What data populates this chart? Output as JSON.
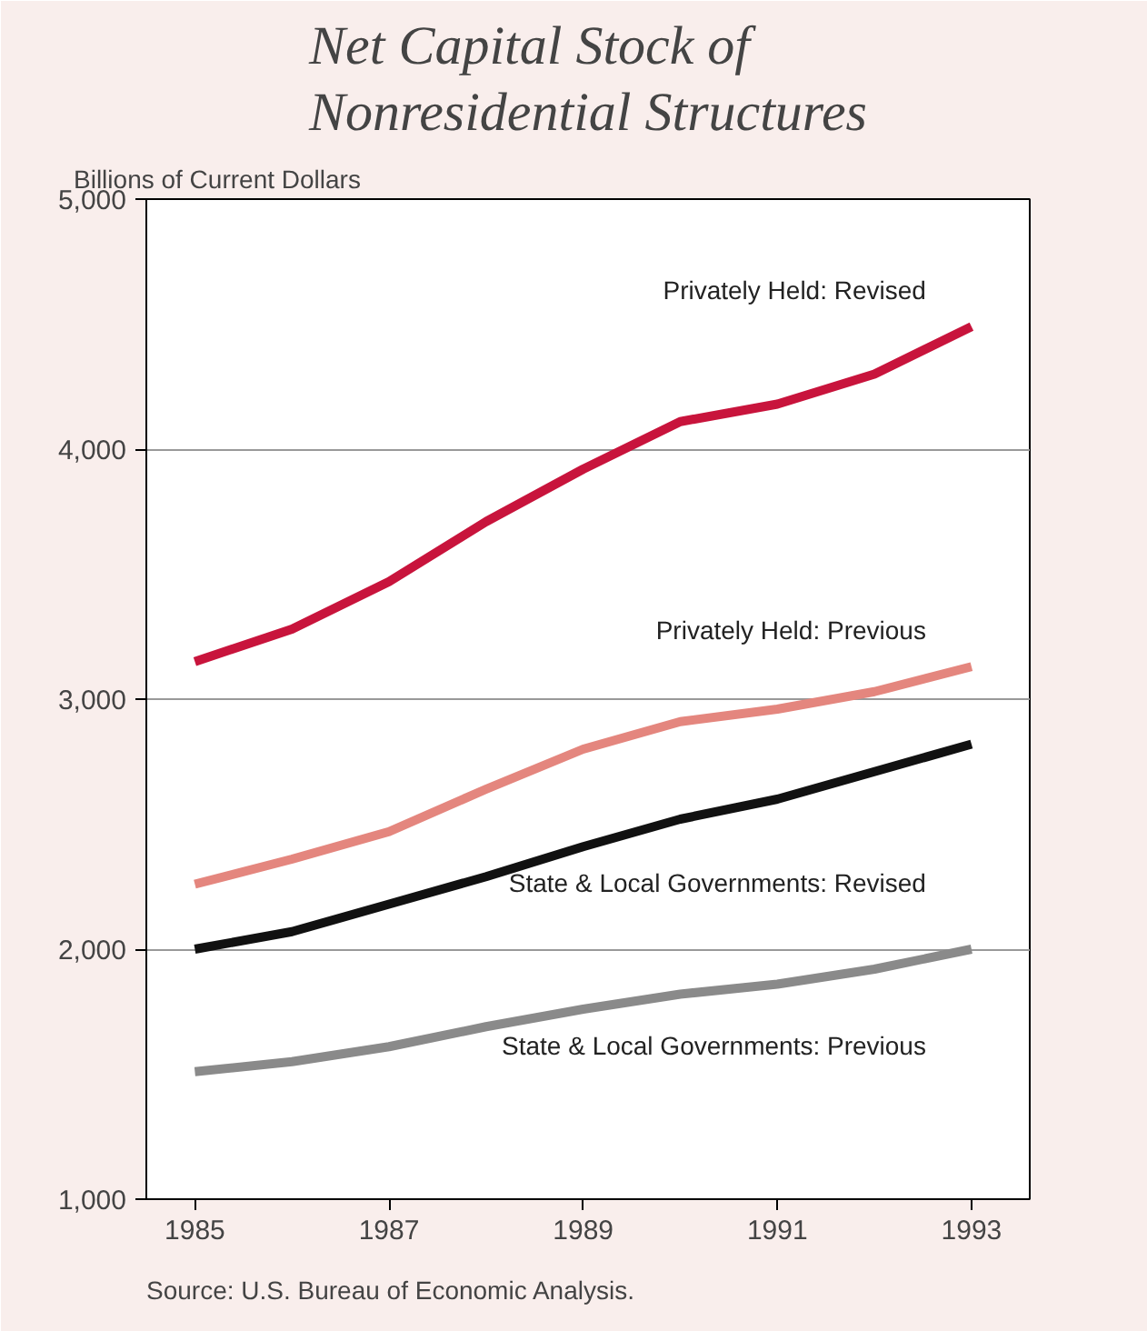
{
  "chart_data": {
    "type": "line",
    "title": "Net Capital Stock of\nNonresidential Structures",
    "ylabel": "Billions of Current Dollars",
    "x": [
      1985,
      1986,
      1987,
      1988,
      1989,
      1990,
      1991,
      1992,
      1993
    ],
    "series": [
      {
        "name": "Privately Held: Revised",
        "color": "#c8143c",
        "values": [
          3150,
          3280,
          3470,
          3710,
          3920,
          4110,
          4180,
          4300,
          4490
        ]
      },
      {
        "name": "Privately Held: Previous",
        "color": "#e4867e",
        "values": [
          2260,
          2360,
          2470,
          2640,
          2800,
          2910,
          2960,
          3030,
          3130
        ]
      },
      {
        "name": "State & Local Governments: Revised",
        "color": "#111111",
        "values": [
          2000,
          2070,
          2180,
          2290,
          2410,
          2520,
          2600,
          2710,
          2820
        ]
      },
      {
        "name": "State & Local Governments: Previous",
        "color": "#8a8a8a",
        "values": [
          1510,
          1550,
          1610,
          1690,
          1760,
          1820,
          1860,
          1920,
          2000
        ]
      }
    ],
    "xlim": [
      1984.5,
      1993.6
    ],
    "xticks": [
      1985,
      1987,
      1989,
      1991,
      1993
    ],
    "ylim": [
      1000,
      5000
    ],
    "yticks": [
      {
        "value": 1000,
        "label": "1,000"
      },
      {
        "value": 2000,
        "label": "2,000"
      },
      {
        "value": 3000,
        "label": "3,000"
      },
      {
        "value": 4000,
        "label": "4,000"
      },
      {
        "value": 5000,
        "label": "5,000"
      }
    ],
    "grid": "y",
    "line_style": "solid",
    "marker": "none",
    "legend": false,
    "annotations": [
      "Source: U.S. Bureau of Economic Analysis."
    ]
  }
}
